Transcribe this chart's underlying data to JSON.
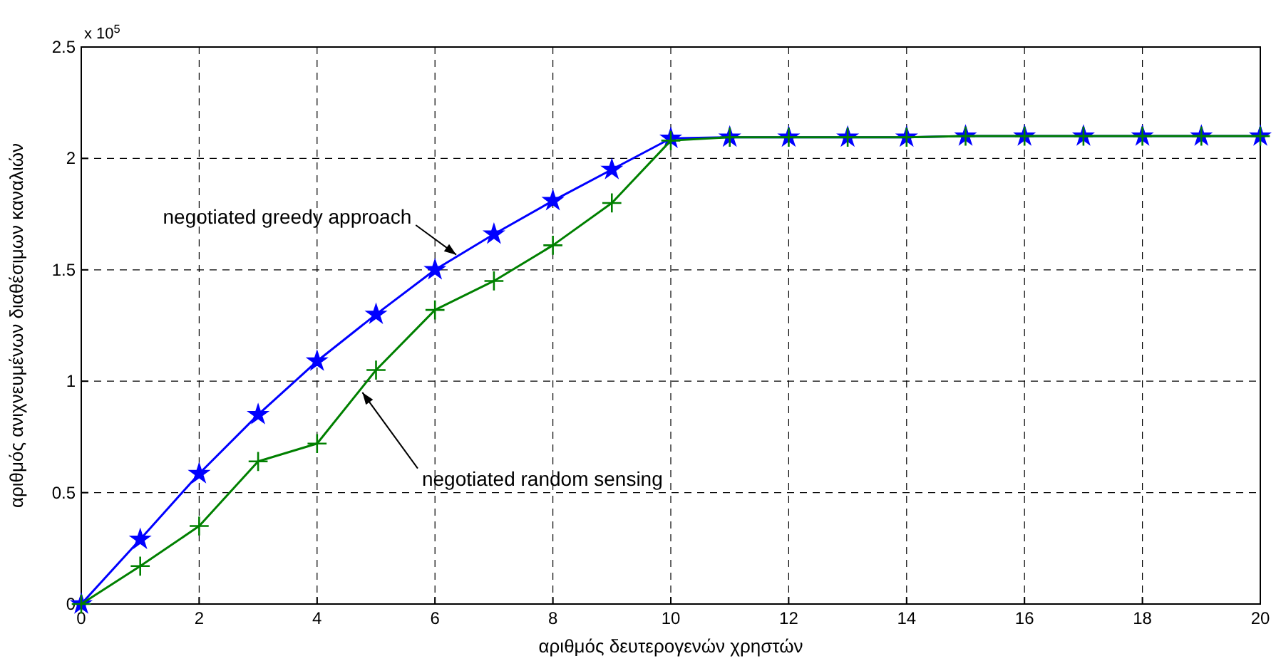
{
  "chart_data": {
    "type": "line",
    "xlabel": "αριθμός δευτερογενών χρηστών",
    "ylabel": "αριθμός ανιχνευμένων διαθέσιμων καναλιών",
    "x": [
      0,
      1,
      2,
      3,
      4,
      5,
      6,
      7,
      8,
      9,
      10,
      11,
      12,
      13,
      14,
      15,
      16,
      17,
      18,
      19,
      20
    ],
    "series": [
      {
        "color": "#0000ff",
        "marker": "star",
        "values": [
          0,
          0.29,
          0.585,
          0.85,
          1.09,
          1.3,
          1.5,
          1.66,
          1.81,
          1.95,
          2.09,
          2.095,
          2.095,
          2.095,
          2.095,
          2.1,
          2.1,
          2.1,
          2.1,
          2.1,
          2.1
        ]
      },
      {
        "color": "#008000",
        "marker": "cross",
        "values": [
          0,
          0.17,
          0.35,
          0.64,
          0.72,
          1.05,
          1.32,
          1.45,
          1.61,
          1.8,
          2.08,
          2.095,
          2.095,
          2.095,
          2.095,
          2.1,
          2.1,
          2.1,
          2.1,
          2.1,
          2.1
        ]
      }
    ],
    "xlim": [
      0,
      20
    ],
    "xticks": [
      0,
      2,
      4,
      6,
      8,
      10,
      12,
      14,
      16,
      18,
      20
    ],
    "ylim": [
      0,
      2.5
    ],
    "yticks": [
      0,
      0.5,
      1,
      1.5,
      2,
      2.5
    ],
    "grid": true,
    "line_style": "solid",
    "annotations": [
      "x 10$^{5}$",
      {
        "text": "negotiated greedy approach",
        "x": 6.4,
        "y": 1.56
      },
      {
        "text": "negotiated random sensing",
        "x": 4.74,
        "y": 0.96
      }
    ]
  }
}
